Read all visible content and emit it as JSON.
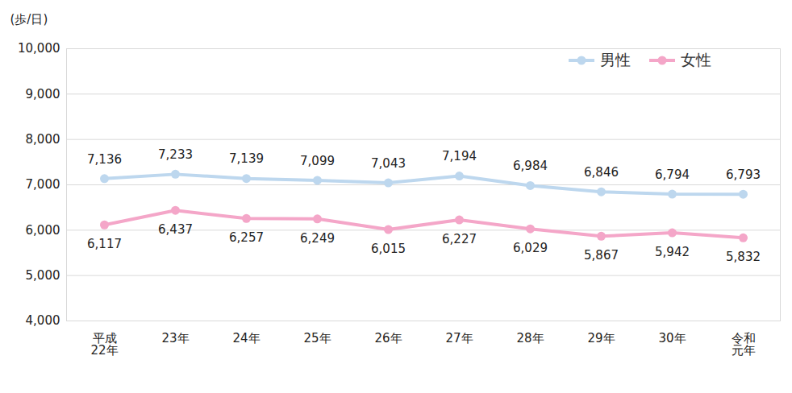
{
  "chart_data": {
    "type": "line",
    "y_label": "(歩/日)",
    "categories": [
      "平成\n22年",
      "23年",
      "24年",
      "25年",
      "26年",
      "27年",
      "28年",
      "29年",
      "30年",
      "令和\n元年"
    ],
    "series": [
      {
        "name": "男性",
        "color": "#bdd7ee",
        "values": [
          7136,
          7233,
          7139,
          7099,
          7043,
          7194,
          6984,
          6846,
          6794,
          6793
        ],
        "value_labels": [
          "7,136",
          "7,233",
          "7,139",
          "7,099",
          "7,043",
          "7,194",
          "6,984",
          "6,846",
          "6,794",
          "6,793"
        ]
      },
      {
        "name": "女性",
        "color": "#f4a6c8",
        "values": [
          6117,
          6437,
          6257,
          6249,
          6015,
          6227,
          6029,
          5867,
          5942,
          5832
        ],
        "value_labels": [
          "6,117",
          "6,437",
          "6,257",
          "6,249",
          "6,015",
          "6,227",
          "6,029",
          "5,867",
          "5,942",
          "5,832"
        ]
      }
    ],
    "ylim": [
      4000,
      10000
    ],
    "yticks": [
      {
        "value": 4000,
        "label": "4,000"
      },
      {
        "value": 5000,
        "label": "5,000"
      },
      {
        "value": 6000,
        "label": "6,000"
      },
      {
        "value": 7000,
        "label": "7,000"
      },
      {
        "value": 8000,
        "label": "8,000"
      },
      {
        "value": 9000,
        "label": "9,000"
      },
      {
        "value": 10000,
        "label": "10,000"
      }
    ],
    "grid": true,
    "legend": "top-right",
    "data_labels": true,
    "marker": "circle",
    "line_style": "solid"
  }
}
